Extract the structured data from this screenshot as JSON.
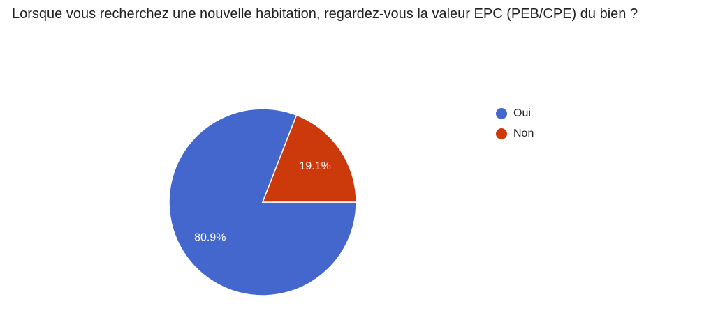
{
  "chart_data": {
    "type": "pie",
    "title": "Lorsque vous recherchez une nouvelle habitation, regardez-vous la valeur EPC (PEB/CPE) du bien ?",
    "categories": [
      "Oui",
      "Non"
    ],
    "values": [
      80.9,
      19.1
    ],
    "value_labels": [
      "80.9%",
      "19.1%"
    ],
    "colors": [
      "#4467cd",
      "#cc3a0b"
    ],
    "legend": "right"
  }
}
